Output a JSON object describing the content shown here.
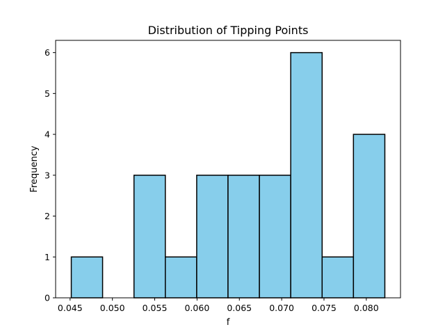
{
  "chart_data": {
    "type": "bar",
    "title": "Distribution of Tipping Points",
    "xlabel": "f",
    "ylabel": "Frequency",
    "bins": [
      {
        "start": 0.04514,
        "end": 0.04884,
        "count": 1
      },
      {
        "start": 0.04884,
        "end": 0.05255,
        "count": 0
      },
      {
        "start": 0.05255,
        "end": 0.05625,
        "count": 3
      },
      {
        "start": 0.05625,
        "end": 0.05996,
        "count": 1
      },
      {
        "start": 0.05996,
        "end": 0.06366,
        "count": 3
      },
      {
        "start": 0.06366,
        "end": 0.06737,
        "count": 3
      },
      {
        "start": 0.06737,
        "end": 0.07107,
        "count": 3
      },
      {
        "start": 0.07107,
        "end": 0.07478,
        "count": 6
      },
      {
        "start": 0.07478,
        "end": 0.07848,
        "count": 1
      },
      {
        "start": 0.07848,
        "end": 0.08219,
        "count": 4
      }
    ],
    "xlim": [
      0.04329,
      0.08404
    ],
    "ylim": [
      0,
      6.3
    ],
    "x_ticks": [
      {
        "value": 0.045,
        "label": "0.045"
      },
      {
        "value": 0.05,
        "label": "0.050"
      },
      {
        "value": 0.055,
        "label": "0.055"
      },
      {
        "value": 0.06,
        "label": "0.060"
      },
      {
        "value": 0.065,
        "label": "0.065"
      },
      {
        "value": 0.07,
        "label": "0.070"
      },
      {
        "value": 0.075,
        "label": "0.075"
      },
      {
        "value": 0.08,
        "label": "0.080"
      }
    ],
    "y_ticks": [
      {
        "value": 0,
        "label": "0"
      },
      {
        "value": 1,
        "label": "1"
      },
      {
        "value": 2,
        "label": "2"
      },
      {
        "value": 3,
        "label": "3"
      },
      {
        "value": 4,
        "label": "4"
      },
      {
        "value": 5,
        "label": "5"
      },
      {
        "value": 6,
        "label": "6"
      }
    ],
    "grid": false,
    "legend": "none",
    "colors": {
      "bar_fill": "#87ceeb",
      "bar_edge": "#000000",
      "axis": "#000000",
      "background": "#ffffff"
    }
  }
}
